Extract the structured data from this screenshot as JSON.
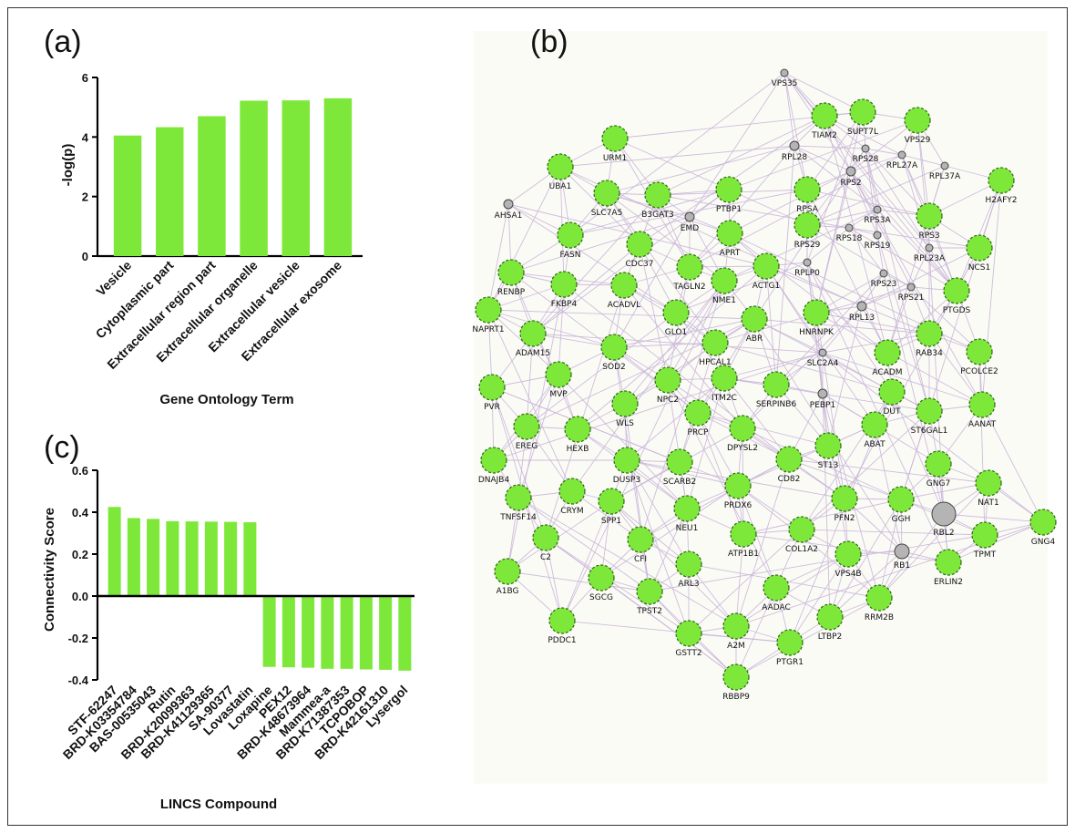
{
  "chart_data": [
    {
      "panel": "(a)",
      "type": "bar",
      "categories": [
        "Vesicle",
        "Cytoplasmic part",
        "Extracellular region part",
        "Extracellular organelle",
        "Extracellular vesicle",
        "Extracellular exosome"
      ],
      "values": [
        4.05,
        4.33,
        4.7,
        5.22,
        5.23,
        5.3
      ],
      "xlabel": "Gene Ontology Term",
      "ylabel": "-log(p)",
      "ylim": [
        0,
        6
      ],
      "yticks": [
        0,
        2,
        4,
        6
      ],
      "color": "#7ee83a"
    },
    {
      "panel": "(c)",
      "type": "bar",
      "categories": [
        "STF-62247",
        "BRD-K03354784",
        "BAS-00535043",
        "Rutin",
        "BRD-K20099363",
        "BRD-K41129365",
        "SA-90377",
        "Lovastatin",
        "Loxapine",
        "PEX12",
        "BRD-K48673964",
        "Mammea-a",
        "BRD-K71387353",
        "TCPOBOP",
        "BRD-K42161310",
        "Lysergol"
      ],
      "values": [
        0.425,
        0.372,
        0.368,
        0.357,
        0.356,
        0.355,
        0.354,
        0.352,
        -0.338,
        -0.34,
        -0.342,
        -0.347,
        -0.347,
        -0.35,
        -0.352,
        -0.356
      ],
      "xlabel": "LINCS Compound",
      "ylabel": "Connectivity Score",
      "ylim": [
        -0.4,
        0.6
      ],
      "yticks": [
        "0.6",
        "0.4",
        "0.2",
        "0.0",
        "-0.2",
        "-0.4"
      ],
      "color": "#7ee83a"
    }
  ],
  "network": {
    "panel": "(b)",
    "node_color": "#7ee83a",
    "grey_color": "#b4b4b4",
    "edge_color": "#c9b6d8",
    "nodes": [
      {
        "id": "VPS35",
        "grey": true,
        "size": "xs"
      },
      {
        "id": "TIAM2"
      },
      {
        "id": "SUPT7L"
      },
      {
        "id": "VPS29"
      },
      {
        "id": "URM1"
      },
      {
        "id": "RPL28",
        "grey": true,
        "size": "s"
      },
      {
        "id": "RPS28",
        "grey": true,
        "size": "xs"
      },
      {
        "id": "RPL27A",
        "grey": true,
        "size": "xs"
      },
      {
        "id": "RPL37A",
        "grey": true,
        "size": "xs"
      },
      {
        "id": "RPS2",
        "grey": true,
        "size": "s"
      },
      {
        "id": "UBA1"
      },
      {
        "id": "H2AFY2"
      },
      {
        "id": "SLC7A5"
      },
      {
        "id": "B3GAT3"
      },
      {
        "id": "PTBP1"
      },
      {
        "id": "RPSA"
      },
      {
        "id": "AHSA1",
        "grey": true,
        "size": "s"
      },
      {
        "id": "EMD",
        "grey": true,
        "size": "s"
      },
      {
        "id": "RPS3A",
        "grey": true,
        "size": "xs"
      },
      {
        "id": "RPS3"
      },
      {
        "id": "FASN"
      },
      {
        "id": "APRT"
      },
      {
        "id": "RPS29"
      },
      {
        "id": "RPS18",
        "grey": true,
        "size": "xs"
      },
      {
        "id": "RPS19",
        "grey": true,
        "size": "xs"
      },
      {
        "id": "CDC37"
      },
      {
        "id": "RPL23A",
        "grey": true,
        "size": "xs"
      },
      {
        "id": "NCS1"
      },
      {
        "id": "RENBP"
      },
      {
        "id": "TAGLN2"
      },
      {
        "id": "ACTG1"
      },
      {
        "id": "RPLP0",
        "grey": true,
        "size": "xs"
      },
      {
        "id": "FKBP4"
      },
      {
        "id": "ACADVL"
      },
      {
        "id": "NME1"
      },
      {
        "id": "RPS23",
        "grey": true,
        "size": "xs"
      },
      {
        "id": "RPS21",
        "grey": true,
        "size": "xs"
      },
      {
        "id": "PTGDS"
      },
      {
        "id": "NAPRT1"
      },
      {
        "id": "RPL13",
        "grey": true,
        "size": "s"
      },
      {
        "id": "GLO1"
      },
      {
        "id": "ABR"
      },
      {
        "id": "HNRNPK"
      },
      {
        "id": "ADAM15"
      },
      {
        "id": "RAB34"
      },
      {
        "id": "HPCAL1"
      },
      {
        "id": "SLC2A4",
        "grey": true,
        "size": "xs"
      },
      {
        "id": "ACADM"
      },
      {
        "id": "PCOLCE2"
      },
      {
        "id": "SOD2"
      },
      {
        "id": "MVP"
      },
      {
        "id": "ITM2C"
      },
      {
        "id": "PVR"
      },
      {
        "id": "NPC2"
      },
      {
        "id": "SERPINB6"
      },
      {
        "id": "PEBP1",
        "grey": true,
        "size": "s"
      },
      {
        "id": "DUT"
      },
      {
        "id": "ST6GAL1"
      },
      {
        "id": "AANAT"
      },
      {
        "id": "WLS"
      },
      {
        "id": "PRCP"
      },
      {
        "id": "EREG"
      },
      {
        "id": "HEXB"
      },
      {
        "id": "DPYSL2"
      },
      {
        "id": "ABAT"
      },
      {
        "id": "ST13"
      },
      {
        "id": "DNAJB4"
      },
      {
        "id": "DUSP3"
      },
      {
        "id": "SCARB2"
      },
      {
        "id": "CD82"
      },
      {
        "id": "GNG7"
      },
      {
        "id": "NAT1"
      },
      {
        "id": "TNFSF14"
      },
      {
        "id": "CRYM"
      },
      {
        "id": "SPP1"
      },
      {
        "id": "PRDX6"
      },
      {
        "id": "PFN2"
      },
      {
        "id": "GGH"
      },
      {
        "id": "RBL2",
        "grey": true,
        "size": "l"
      },
      {
        "id": "GNG4"
      },
      {
        "id": "NEU1"
      },
      {
        "id": "C2"
      },
      {
        "id": "ATP1B1"
      },
      {
        "id": "COL1A2"
      },
      {
        "id": "TPMT"
      },
      {
        "id": "CFI"
      },
      {
        "id": "RB1",
        "grey": true,
        "size": "m"
      },
      {
        "id": "VPS4B"
      },
      {
        "id": "ERLIN2"
      },
      {
        "id": "A1BG"
      },
      {
        "id": "SGCG"
      },
      {
        "id": "ARL3"
      },
      {
        "id": "PDDC1"
      },
      {
        "id": "TPST2"
      },
      {
        "id": "AADAC"
      },
      {
        "id": "RRM2B"
      },
      {
        "id": "LTBP2"
      },
      {
        "id": "A2M"
      },
      {
        "id": "GSTT2"
      },
      {
        "id": "PTGR1"
      },
      {
        "id": "RBBP9"
      }
    ]
  }
}
